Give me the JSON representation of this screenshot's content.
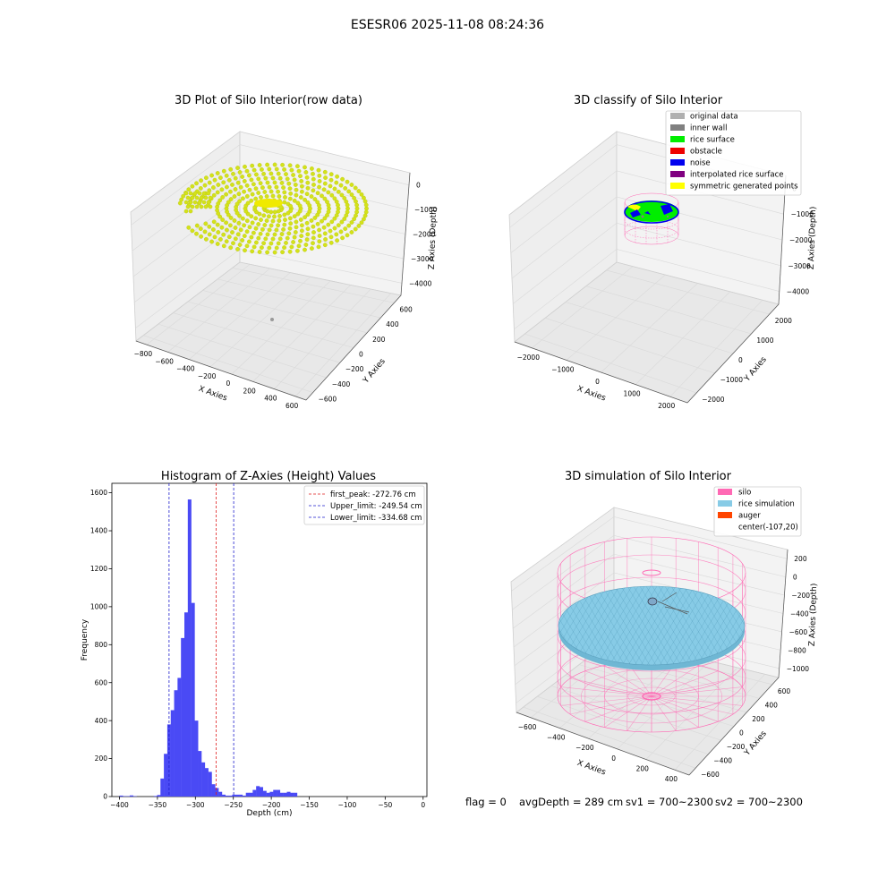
{
  "figure": {
    "title": "ESESR06 2025-11-08 08:24:36",
    "status": {
      "flag": "flag = 0",
      "avg_depth": "avgDepth = 289 cm",
      "sv1": "sv1 = 700~2300",
      "sv2": "sv2 = 700~2300"
    }
  },
  "colors": {
    "raw_points": "#d4e21a",
    "raw_points_edge": "#b9c610",
    "hist_bar": "#4a4af5",
    "peak_line": "#e01f1f",
    "limit_line": "#1f1fcc",
    "silo_wire": "#ff69b4",
    "rice_sim": "#87cbe6",
    "auger": "#ff4500",
    "pane": "#f0f0f0",
    "grid": "#d9d9d9"
  },
  "chart_data": [
    {
      "id": "raw",
      "type": "scatter3d",
      "title": "3D Plot of Silo Interior(row data)",
      "xlabel": "X Axies",
      "ylabel": "Y Axies",
      "zlabel": "Z Axies (Depth)",
      "x_ticks": [
        "−800",
        "−600",
        "−400",
        "−200",
        "0",
        "200",
        "400",
        "600"
      ],
      "y_ticks": [
        "−600",
        "−400",
        "−200",
        "0",
        "200",
        "400",
        "600"
      ],
      "z_ticks": [
        "0",
        "−1000",
        "−2000",
        "−3000",
        "−4000"
      ],
      "xlim": [
        -800,
        600
      ],
      "ylim": [
        -600,
        600
      ],
      "zlim": [
        -4500,
        0
      ],
      "point_color": "#d4e21a"
    },
    {
      "id": "classify",
      "type": "scatter3d",
      "title": "3D classify of Silo Interior",
      "xlabel": "X Axies",
      "ylabel": "Y Axies",
      "zlabel": "Z Axies (Depth)",
      "x_ticks": [
        "−2000",
        "−1000",
        "0",
        "1000",
        "2000"
      ],
      "y_ticks": [
        "−2000",
        "−1000",
        "0",
        "1000",
        "2000"
      ],
      "z_ticks": [
        "0",
        "−1000",
        "−2000",
        "−3000",
        "−4000"
      ],
      "xlim": [
        -2300,
        2300
      ],
      "ylim": [
        -2300,
        2300
      ],
      "zlim": [
        -4500,
        0
      ],
      "legend": [
        {
          "label": "original data",
          "color": "#b0b0b0"
        },
        {
          "label": "inner wall",
          "color": "#808080"
        },
        {
          "label": "rice surface",
          "color": "#00ee00"
        },
        {
          "label": "obstacle",
          "color": "#ee0000"
        },
        {
          "label": "noise",
          "color": "#0000ee"
        },
        {
          "label": "interpolated rice surface",
          "color": "#800080"
        },
        {
          "label": "symmetric generated points",
          "color": "#ffff00"
        }
      ]
    },
    {
      "id": "hist",
      "type": "bar",
      "title": "Histogram of Z-Axies (Height) Values",
      "xlabel": "Depth (cm)",
      "ylabel": "Frequency",
      "xlim": [
        -410,
        5
      ],
      "ylim": [
        0,
        1650
      ],
      "x_ticks": [
        -400,
        -350,
        -300,
        -250,
        -200,
        -150,
        -100,
        -50,
        0
      ],
      "x_tick_labels": [
        "−400",
        "−350",
        "−300",
        "−250",
        "−200",
        "−150",
        "−100",
        "−50",
        "0"
      ],
      "y_ticks": [
        0,
        200,
        400,
        600,
        800,
        1000,
        1200,
        1400,
        1600
      ],
      "y_tick_labels": [
        "0",
        "200",
        "400",
        "600",
        "800",
        "1000",
        "1200",
        "1400",
        "1600"
      ],
      "bin_start": -400,
      "bin_width": 4.5,
      "values": [
        5,
        2,
        2,
        6,
        2,
        0,
        0,
        0,
        0,
        0,
        3,
        8,
        95,
        225,
        380,
        455,
        560,
        625,
        835,
        970,
        1565,
        1020,
        400,
        240,
        180,
        150,
        130,
        65,
        45,
        25,
        10,
        5,
        5,
        10,
        10,
        10,
        5,
        20,
        20,
        35,
        55,
        50,
        30,
        20,
        25,
        35,
        35,
        20,
        20,
        25,
        20,
        20
      ],
      "vlines": [
        {
          "x": -272.76,
          "label": "first_peak: -272.76 cm",
          "color": "#e01f1f"
        },
        {
          "x": -249.54,
          "label": "Upper_limit: -249.54 cm",
          "color": "#1f1fcc"
        },
        {
          "x": -334.68,
          "label": "Lower_limit: -334.68 cm",
          "color": "#1f1fcc"
        }
      ],
      "legend_position": "top-right"
    },
    {
      "id": "sim",
      "type": "surface3d",
      "title": "3D simulation of Silo Interior",
      "xlabel": "X Axies",
      "ylabel": "Y Axies",
      "zlabel": "Z Axies (Depth)",
      "x_ticks": [
        "−600",
        "−400",
        "−200",
        "0",
        "200",
        "400"
      ],
      "y_ticks": [
        "−600",
        "−400",
        "−200",
        "0",
        "200",
        "400",
        "600"
      ],
      "z_ticks": [
        "200",
        "0",
        "−200",
        "−400",
        "−600",
        "−800",
        "−1000"
      ],
      "legend": [
        {
          "label": "silo",
          "color": "#ff69b4",
          "swatch": true
        },
        {
          "label": "rice simulation",
          "color": "#87cbe6",
          "swatch": true
        },
        {
          "label": "auger",
          "color": "#ff4500",
          "swatch": true
        },
        {
          "label": "center(-107,20)",
          "color": "",
          "swatch": false
        }
      ]
    }
  ]
}
